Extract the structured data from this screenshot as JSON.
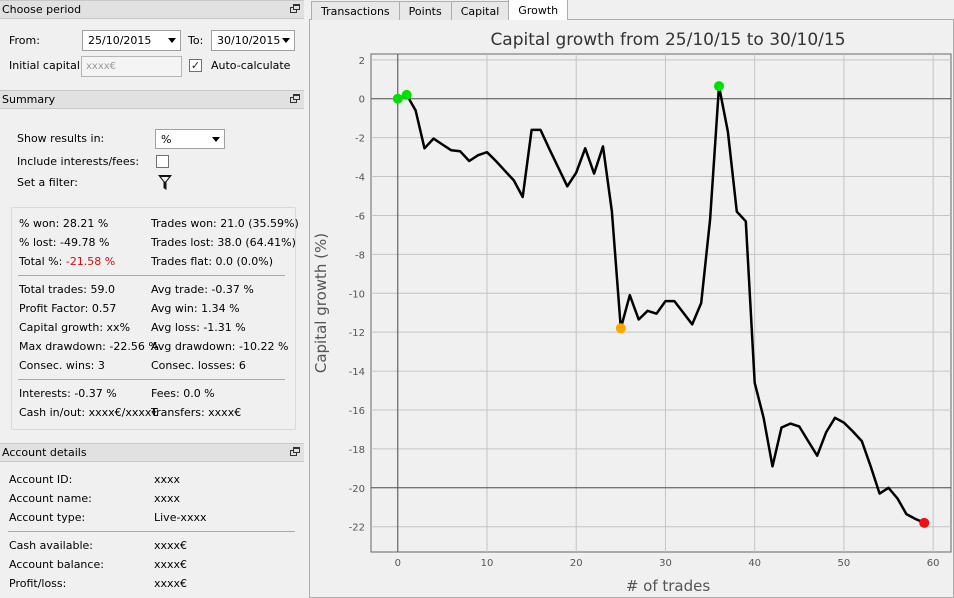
{
  "choose_period": {
    "title": "Choose period",
    "from_label": "From:",
    "from_value": "25/10/2015",
    "to_label": "To:",
    "to_value": "30/10/2015",
    "initial_capital_label": "Initial capital:",
    "initial_capital_placeholder": "xxxx€",
    "auto_calculate_label": "Auto-calculate",
    "auto_calculate_checked": true
  },
  "summary": {
    "title": "Summary",
    "show_results_label": "Show results in:",
    "show_results_value": "%",
    "include_interests_label": "Include interests/fees:",
    "include_interests_checked": false,
    "filter_label": "Set a filter:",
    "stats": {
      "won_pct": "% won: 28.21 %",
      "trades_won": "Trades won: 21.0 (35.59%)",
      "lost_pct": "% lost: -49.78 %",
      "trades_lost": "Trades lost: 38.0 (64.41%)",
      "total_pct_label": "Total %: ",
      "total_pct_value": "-21.58 %",
      "trades_flat": "Trades flat: 0.0 (0.0%)",
      "total_trades": "Total trades: 59.0",
      "avg_trade": "Avg trade: -0.37 %",
      "profit_factor": "Profit Factor: 0.57",
      "avg_win": "Avg win: 1.34 %",
      "capital_growth": "Capital growth: xx%",
      "avg_loss": "Avg loss: -1.31 %",
      "max_drawdown": "Max drawdown: -22.56 %",
      "avg_drawdown": "Avg drawdown: -10.22 %",
      "consec_wins": "Consec. wins: 3",
      "consec_losses": "Consec. losses: 6",
      "interests": "Interests: -0.37 %",
      "fees": "Fees: 0.0 %",
      "cash_inout": "Cash in/out: xxxx€/xxxx€",
      "transfers": "Transfers: xxxx€"
    }
  },
  "account_details": {
    "title": "Account details",
    "id_label": "Account ID:",
    "id_value": "xxxx",
    "name_label": "Account name:",
    "name_value": "xxxx",
    "type_label": "Account type:",
    "type_value": "Live-xxxx",
    "cash_label": "Cash available:",
    "cash_value": "xxxx€",
    "balance_label": "Account balance:",
    "balance_value": "xxxx€",
    "pl_label": "Profit/loss:",
    "pl_value": "xxxx€"
  },
  "tabs": [
    "Transactions",
    "Points",
    "Capital",
    "Growth"
  ],
  "active_tab": "Growth",
  "colors": {
    "line": "#000000",
    "high_marker": "#00e000",
    "low_marker": "#ffa500",
    "final_marker": "#ee1111",
    "total_negative": "#d01010"
  },
  "chart_data": {
    "type": "line",
    "title": "Capital growth from 25/10/15 to 30/10/15",
    "xlabel": "# of trades",
    "ylabel": "Capital growth (%)",
    "xlim": [
      -3,
      62
    ],
    "ylim": [
      -23.3,
      2.3
    ],
    "xticks": [
      0,
      10,
      20,
      30,
      40,
      50,
      60
    ],
    "yticks": [
      2,
      0,
      -2,
      -4,
      -6,
      -8,
      -10,
      -12,
      -14,
      -16,
      -18,
      -20,
      -22
    ],
    "reference_lines": {
      "x": [
        0
      ],
      "y": [
        0,
        -20
      ]
    },
    "grid": true,
    "x": [
      0,
      1,
      2,
      3,
      4,
      5,
      6,
      7,
      8,
      9,
      10,
      11,
      12,
      13,
      14,
      15,
      16,
      17,
      18,
      19,
      20,
      21,
      22,
      23,
      24,
      25,
      26,
      27,
      28,
      29,
      30,
      31,
      32,
      33,
      34,
      35,
      36,
      37,
      38,
      39,
      40,
      41,
      42,
      43,
      44,
      45,
      46,
      47,
      48,
      49,
      50,
      51,
      52,
      53,
      54,
      55,
      56,
      57,
      58,
      59
    ],
    "y": [
      0,
      0.2,
      -0.6,
      -2.55,
      -2.05,
      -2.35,
      -2.65,
      -2.7,
      -3.2,
      -2.9,
      -2.75,
      -3.2,
      -3.7,
      -4.2,
      -5.05,
      -1.6,
      -1.6,
      -2.6,
      -3.55,
      -4.5,
      -3.8,
      -2.55,
      -3.85,
      -2.45,
      -5.8,
      -11.8,
      -10.1,
      -11.35,
      -10.9,
      -11.05,
      -10.4,
      -10.4,
      -11.0,
      -11.6,
      -10.5,
      -6.2,
      0.65,
      -1.7,
      -5.8,
      -6.3,
      -14.6,
      -16.4,
      -18.9,
      -16.9,
      -16.7,
      -16.85,
      -17.6,
      -18.35,
      -17.15,
      -16.4,
      -16.65,
      -17.1,
      -17.6,
      -18.9,
      -20.3,
      -20.0,
      -20.55,
      -21.35,
      -21.6,
      -21.8
    ],
    "markers": [
      {
        "label": "start",
        "x": 0,
        "y": 0,
        "color": "#00e000"
      },
      {
        "label": "peak",
        "x": 1,
        "y": 0.2,
        "color": "#00e000"
      },
      {
        "label": "peak",
        "x": 36,
        "y": 0.65,
        "color": "#00e000"
      },
      {
        "label": "low",
        "x": 25,
        "y": -11.8,
        "color": "#ffa500"
      },
      {
        "label": "end",
        "x": 59,
        "y": -21.8,
        "color": "#ee1111"
      }
    ]
  }
}
